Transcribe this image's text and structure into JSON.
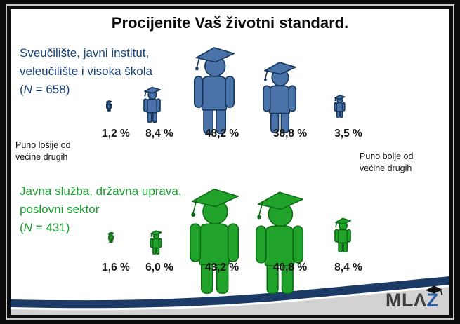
{
  "title": "Procijenite Vaš životni standard.",
  "scale_anchors": {
    "left_lines": [
      "Puno lošije od",
      "većine drugih"
    ],
    "right_lines": [
      "Puno bolje od",
      "većine drugih"
    ]
  },
  "logo": {
    "left": "MLΛ",
    "right": "Z"
  },
  "theme": {
    "blue_fill": "#4a74a9",
    "blue_outline": "#16365c",
    "blue_text": "#17437b",
    "green_fill": "#21a32b",
    "green_outline": "#0c6b14",
    "green_text": "#169f2c",
    "swoosh_navy": "#1b3a66",
    "swoosh_gray": "#d2d2d2"
  },
  "chart_data": {
    "type": "pictogram-bar",
    "title": "Procijenite Vaš životni standard.",
    "unit": "%",
    "scale": {
      "left_anchor": "Puno lošije od većine drugih",
      "right_anchor": "Puno bolje od većine drugih"
    },
    "categories": [
      "Puno lošije od većine drugih",
      "2",
      "3",
      "4",
      "Puno bolje od većine drugih"
    ],
    "series": [
      {
        "key": "sveuciliste",
        "name": "Sveučilište, javni institut, veleučilište i visoka škola",
        "label_lines": [
          "Sveučilište, javni institut,",
          "veleučilište i visoka škola"
        ],
        "n": 658,
        "n_parts": [
          "(",
          "N",
          " = 658)"
        ],
        "color": "#4a74a9",
        "outline": "#16365c",
        "label_y": 169,
        "points": [
          {
            "label": "1,2 %",
            "value": 1.2,
            "height": 16,
            "cx": 140,
            "bottom": 146,
            "label_cx": 150
          },
          {
            "label": "8,4 %",
            "value": 8.4,
            "height": 52,
            "cx": 201,
            "bottom": 162,
            "label_cx": 212
          },
          {
            "label": "48,2 %",
            "value": 48.2,
            "height": 128,
            "cx": 290,
            "bottom": 179,
            "label_cx": 301
          },
          {
            "label": "38,8 %",
            "value": 38.8,
            "height": 104,
            "cx": 383,
            "bottom": 177,
            "label_cx": 398
          },
          {
            "label": "3,5 %",
            "value": 3.5,
            "height": 33,
            "cx": 468,
            "bottom": 155,
            "label_cx": 481
          }
        ]
      },
      {
        "key": "javna-sluzba",
        "name": "Javna služba, državna uprava, poslovni sektor",
        "label_lines": [
          "Javna služba, državna uprava,",
          "poslovni sektor"
        ],
        "n": 431,
        "n_parts": [
          "(",
          "N",
          " = 431)"
        ],
        "color": "#21a32b",
        "outline": "#0c6b14",
        "label_y": 360,
        "points": [
          {
            "label": "1,6 %",
            "value": 1.6,
            "height": 15,
            "cx": 143,
            "bottom": 333,
            "label_cx": 150
          },
          {
            "label": "6,0 %",
            "value": 6.0,
            "height": 35,
            "cx": 207,
            "bottom": 350,
            "label_cx": 212
          },
          {
            "label": "43,2 %",
            "value": 43.2,
            "height": 155,
            "cx": 290,
            "bottom": 407,
            "label_cx": 301
          },
          {
            "label": "40,8 %",
            "value": 40.8,
            "height": 150,
            "cx": 383,
            "bottom": 407,
            "label_cx": 398
          },
          {
            "label": "8,4 %",
            "value": 8.4,
            "height": 50,
            "cx": 473,
            "bottom": 347,
            "label_cx": 481
          }
        ]
      }
    ]
  }
}
